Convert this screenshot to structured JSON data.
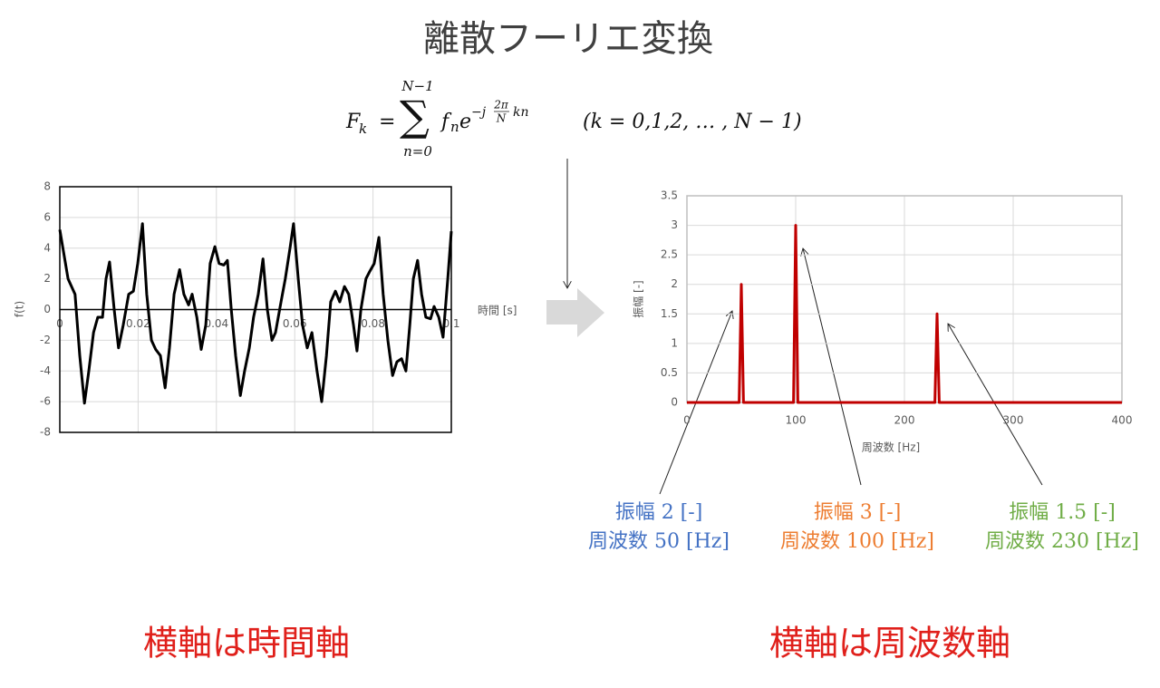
{
  "title": "離散フーリエ変換",
  "formula": {
    "lhs_symbol": "F",
    "lhs_index": "k",
    "equals": "=",
    "sum": "∑",
    "sum_upper": "N−1",
    "sum_lower": "n=0",
    "term_symbol": "f",
    "term_index": "n",
    "exp_base": "e",
    "exp_sign": "−j",
    "exp_num": "2π",
    "exp_den": "N",
    "exp_tail": "kn",
    "condition": "(k = 0,1,2, … , N − 1)"
  },
  "chart_data": [
    {
      "type": "line",
      "ylabel": "f(t)",
      "xlabel": "時間 [s]",
      "color": "#000000",
      "grid": true,
      "xlim": [
        0,
        0.1
      ],
      "xticks": [
        0,
        0.02,
        0.04,
        0.06,
        0.08,
        0.1
      ],
      "ylim": [
        -8,
        8
      ],
      "yticks": [
        -8,
        -6,
        -4,
        -2,
        0,
        2,
        4,
        6,
        8
      ],
      "x": [
        0,
        0.0021,
        0.0039,
        0.0051,
        0.0063,
        0.0074,
        0.0086,
        0.0097,
        0.0109,
        0.0118,
        0.0127,
        0.0139,
        0.015,
        0.0162,
        0.0176,
        0.0188,
        0.0199,
        0.0211,
        0.0222,
        0.0234,
        0.0245,
        0.0257,
        0.0269,
        0.028,
        0.0292,
        0.0306,
        0.0317,
        0.0329,
        0.0338,
        0.035,
        0.0361,
        0.0373,
        0.0384,
        0.0396,
        0.0407,
        0.0419,
        0.0428,
        0.0438,
        0.0449,
        0.0461,
        0.0472,
        0.0484,
        0.0495,
        0.0507,
        0.0519,
        0.053,
        0.0542,
        0.0551,
        0.0565,
        0.0576,
        0.0588,
        0.0597,
        0.0609,
        0.062,
        0.0632,
        0.0644,
        0.0657,
        0.0669,
        0.0681,
        0.0692,
        0.0704,
        0.0715,
        0.0727,
        0.0738,
        0.075,
        0.0759,
        0.0769,
        0.0782,
        0.0792,
        0.0803,
        0.0815,
        0.0826,
        0.0838,
        0.085,
        0.0861,
        0.0873,
        0.0884,
        0.0894,
        0.0903,
        0.0914,
        0.0924,
        0.0935,
        0.0947,
        0.0956,
        0.0968,
        0.0979,
        0.0991,
        0.1
      ],
      "values": [
        5.2,
        2,
        1,
        -3,
        -6.1,
        -4,
        -1.5,
        -0.5,
        -0.5,
        2,
        3.1,
        0,
        -2.5,
        -1,
        1,
        1.2,
        3,
        5.6,
        1,
        -2,
        -2.6,
        -3,
        -5.1,
        -2.5,
        1,
        2.6,
        1,
        0.3,
        1,
        -0.5,
        -2.6,
        -1,
        3,
        4.1,
        3,
        2.9,
        3.2,
        0,
        -3,
        -5.6,
        -4,
        -2.5,
        -0.5,
        1,
        3.3,
        0,
        -2,
        -1.5,
        0.5,
        2,
        4,
        5.6,
        2,
        -1,
        -2.5,
        -1.5,
        -4,
        -6,
        -3,
        0.5,
        1.2,
        0.5,
        1.5,
        1,
        -1,
        -2.7,
        0,
        2,
        2.5,
        3,
        4.7,
        1,
        -2,
        -4.3,
        -3.4,
        -3.2,
        -4,
        -1,
        2,
        3.2,
        1,
        -0.5,
        -0.6,
        0.2,
        -0.5,
        -1.8,
        2,
        5.1
      ]
    },
    {
      "type": "line",
      "ylabel": "振幅 [-]",
      "xlabel": "周波数 [Hz]",
      "color": "#c00000",
      "grid": true,
      "xlim": [
        0,
        400
      ],
      "xticks": [
        0,
        100,
        200,
        300,
        400
      ],
      "ylim": [
        0,
        3.5
      ],
      "yticks": [
        0,
        0.5,
        1,
        1.5,
        2,
        2.5,
        3,
        3.5
      ],
      "x": [
        0,
        48,
        50,
        52,
        98,
        100,
        102,
        228,
        230,
        232,
        400
      ],
      "values": [
        0,
        0,
        2,
        0,
        0,
        3,
        0,
        0,
        1.5,
        0,
        0
      ]
    }
  ],
  "annotations": [
    {
      "lines": [
        "振幅 2 [-]",
        "周波数 50 [Hz]"
      ],
      "color": "#4472c4"
    },
    {
      "lines": [
        "振幅 3 [-]",
        "周波数 100 [Hz]"
      ],
      "color": "#ed7d31"
    },
    {
      "lines": [
        "振幅 1.5 [-]",
        "周波数 230 [Hz]"
      ],
      "color": "#70ad47"
    }
  ],
  "captions": [
    "横軸は時間軸",
    "横軸は周波数軸"
  ],
  "caption_color": "#e0201b"
}
